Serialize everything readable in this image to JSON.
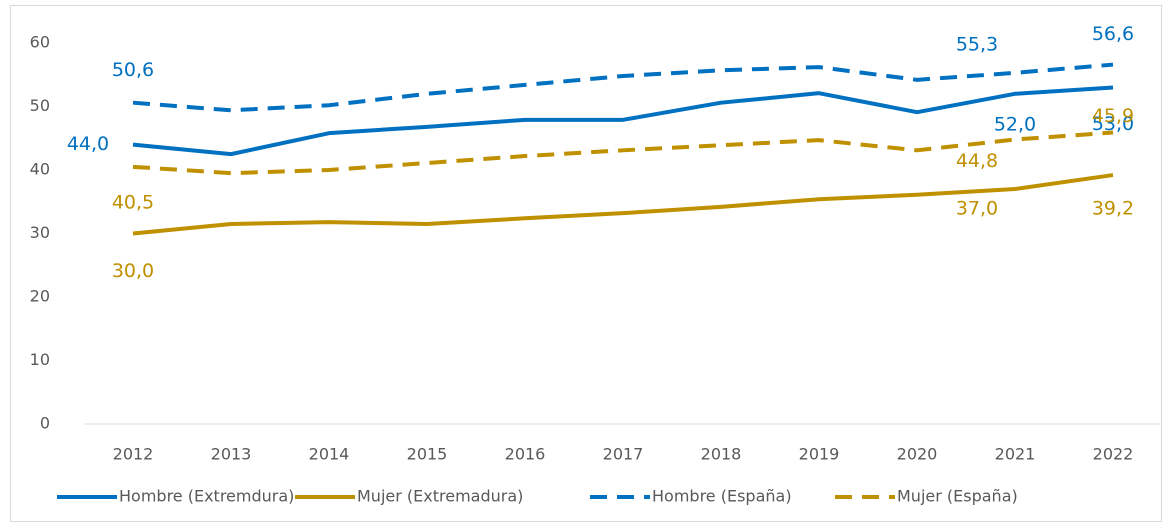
{
  "chart_data": {
    "type": "line",
    "categories": [
      "2012",
      "2013",
      "2014",
      "2015",
      "2016",
      "2017",
      "2018",
      "2019",
      "2020",
      "2021",
      "2022"
    ],
    "ylim": [
      0,
      60
    ],
    "yticks": [
      0,
      10,
      20,
      30,
      40,
      50,
      60
    ],
    "grid": false,
    "legend": "bottom",
    "series": [
      {
        "name": "Hombre (Extremdura)",
        "color": "#0070c0",
        "dashed": false,
        "values": [
          44.0,
          42.5,
          45.8,
          46.8,
          47.9,
          47.9,
          50.6,
          52.1,
          49.1,
          52.0,
          53.0
        ],
        "value_labels": [
          "44,0",
          null,
          null,
          null,
          null,
          null,
          null,
          null,
          null,
          "52,0",
          "53,0"
        ]
      },
      {
        "name": "Mujer (Extremadura)",
        "color": "#bf9000",
        "dashed": false,
        "values": [
          30.0,
          31.5,
          31.8,
          31.5,
          32.4,
          33.2,
          34.2,
          35.4,
          36.1,
          37.0,
          39.2
        ],
        "value_labels": [
          "30,0",
          null,
          null,
          null,
          null,
          null,
          null,
          null,
          null,
          "37,0",
          "39,2"
        ]
      },
      {
        "name": "Hombre (España)",
        "color": "#0070c0",
        "dashed": true,
        "values": [
          50.6,
          49.4,
          50.2,
          52.0,
          53.4,
          54.8,
          55.7,
          56.2,
          54.2,
          55.3,
          56.6
        ],
        "value_labels": [
          "50,6",
          null,
          null,
          null,
          null,
          null,
          null,
          null,
          null,
          "55,3",
          "56,6"
        ]
      },
      {
        "name": "Mujer (España)",
        "color": "#bf9000",
        "dashed": true,
        "values": [
          40.5,
          39.5,
          40.0,
          41.1,
          42.2,
          43.1,
          43.9,
          44.7,
          43.1,
          44.8,
          45.9
        ],
        "value_labels": [
          "40,5",
          null,
          null,
          null,
          null,
          null,
          null,
          null,
          null,
          "44,8",
          "45,9"
        ]
      }
    ]
  }
}
